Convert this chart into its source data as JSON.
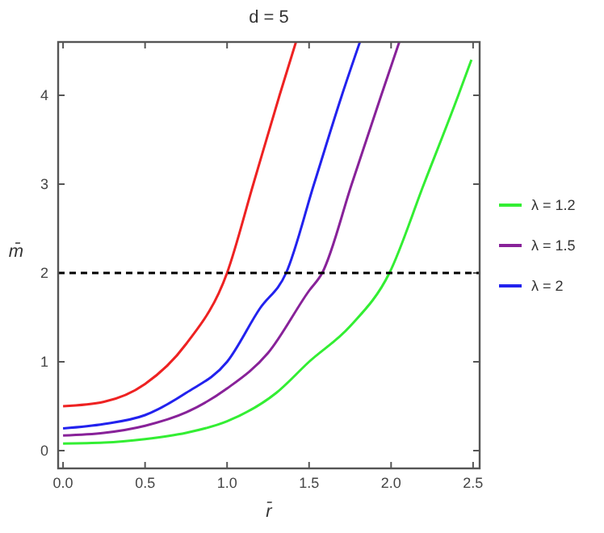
{
  "chart_data": {
    "type": "line",
    "title": "d = 5",
    "xlabel": "r̄",
    "ylabel": "m̄",
    "xlim": [
      -0.03,
      2.54
    ],
    "ylim": [
      -0.2,
      4.6
    ],
    "xticks": [
      {
        "value": 0,
        "label": "0.0"
      },
      {
        "value": 0.5,
        "label": "0.5"
      },
      {
        "value": 1,
        "label": "1.0"
      },
      {
        "value": 1.5,
        "label": "1.5"
      },
      {
        "value": 2,
        "label": "2.0"
      },
      {
        "value": 2.5,
        "label": "2.5"
      }
    ],
    "yticks": [
      0,
      1,
      2,
      3,
      4
    ],
    "grid": false,
    "legend": "right",
    "line_style": "solid",
    "series": [
      {
        "name": "λ = 1.2",
        "color": "#33ee33",
        "x": [
          0,
          0.25,
          0.5,
          0.75,
          1.0,
          1.3,
          1.5,
          1.75,
          1.99,
          2.2,
          2.41,
          2.49
        ],
        "values": [
          0.08,
          0.09,
          0.13,
          0.2,
          0.33,
          0.65,
          1.0,
          1.4,
          2.0,
          3.0,
          4.0,
          4.4
        ]
      },
      {
        "name": "λ = 1.5",
        "color": "#882299",
        "x": [
          0,
          0.25,
          0.5,
          0.75,
          1.0,
          1.25,
          1.5,
          1.58,
          1.76,
          1.94,
          2.05
        ],
        "values": [
          0.17,
          0.2,
          0.28,
          0.43,
          0.7,
          1.1,
          1.8,
          2.0,
          3.0,
          4.0,
          4.6
        ]
      },
      {
        "name": "λ = 2",
        "color": "#2222ee",
        "x": [
          0,
          0.25,
          0.5,
          0.75,
          1.0,
          1.2,
          1.36,
          1.53,
          1.7,
          1.81
        ],
        "values": [
          0.25,
          0.3,
          0.4,
          0.65,
          1.0,
          1.6,
          2.0,
          3.0,
          4.0,
          4.6
        ]
      },
      {
        "color": "#ee2222",
        "x": [
          0,
          0.25,
          0.5,
          0.75,
          1.0,
          1.16,
          1.32,
          1.42
        ],
        "values": [
          0.5,
          0.55,
          0.75,
          1.2,
          2.0,
          3.0,
          4.0,
          4.6
        ]
      }
    ],
    "ref_lines": [
      {
        "axis": "y",
        "value": 2,
        "color": "#000000",
        "line_style": "dashed"
      }
    ]
  }
}
